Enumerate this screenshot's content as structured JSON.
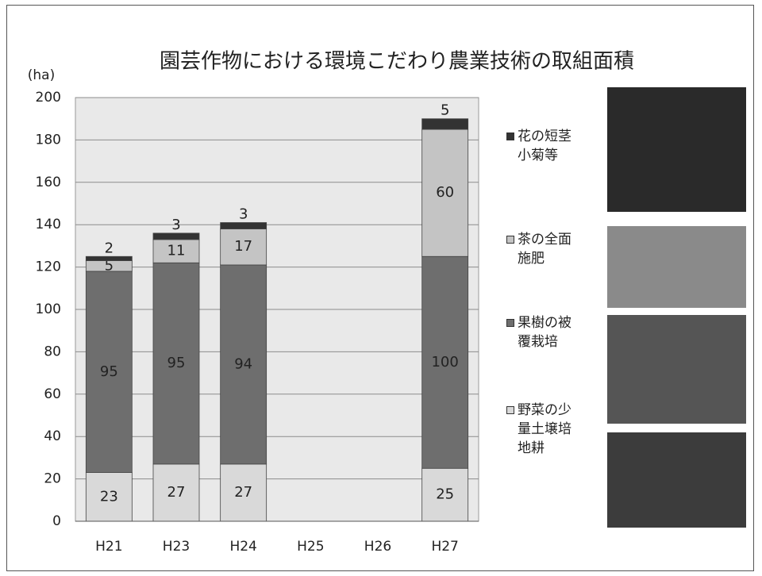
{
  "chart_data": {
    "type": "stacked-bar",
    "title": "園芸作物における環境こだわり農業技術の取組面積",
    "y_label": "(ha)",
    "categories": [
      "H21",
      "H23",
      "H24",
      "H25",
      "H26",
      "H27"
    ],
    "series": [
      {
        "name": "野菜の少量土壌培地耕",
        "color": "#d9d9d9",
        "values": [
          23,
          27,
          27,
          null,
          null,
          25
        ]
      },
      {
        "name": "果樹の被覆栽培",
        "color": "#6e6e6e",
        "values": [
          95,
          95,
          94,
          null,
          null,
          100
        ]
      },
      {
        "name": "茶の全面施肥",
        "color": "#c4c4c4",
        "values": [
          5,
          11,
          17,
          null,
          null,
          60
        ]
      },
      {
        "name": "花の短茎小菊等",
        "color": "#333333",
        "values": [
          2,
          3,
          3,
          null,
          null,
          5
        ]
      }
    ],
    "ylim": [
      0,
      200
    ],
    "yticks": [
      0,
      20,
      40,
      60,
      80,
      100,
      120,
      140,
      160,
      180,
      200
    ],
    "grid": true
  }
}
